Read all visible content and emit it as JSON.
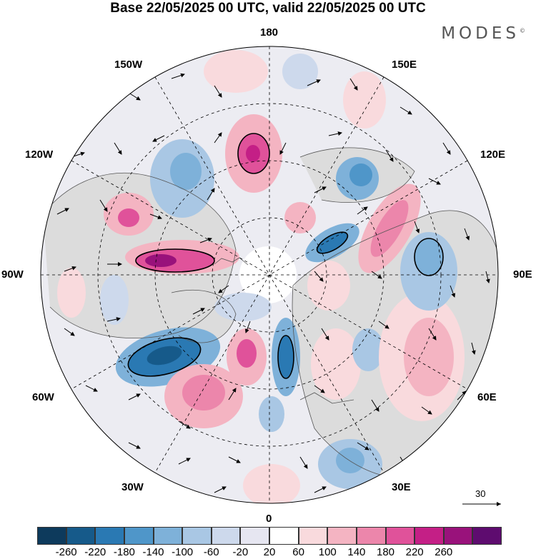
{
  "title": "Base 22/05/2025 00 UTC, valid 22/05/2025 00 UTC",
  "logo": {
    "text": "MODES",
    "mark": "©"
  },
  "longitude_labels": {
    "top": "180",
    "bottom": "0",
    "left": "90W",
    "right": "90E",
    "nw_upper": "150W",
    "nw_lower": "120W",
    "ne_upper": "150E",
    "ne_lower": "120E",
    "sw_upper": "60W",
    "sw_lower": "30W",
    "se_upper": "60E",
    "se_lower": "30E"
  },
  "reference_vector": {
    "label": "30"
  },
  "colorbar": {
    "colors": [
      "#0d3a5c",
      "#165a8a",
      "#2a79b3",
      "#4f96c9",
      "#7eb1d9",
      "#a9c7e4",
      "#cdd9ec",
      "#e6e6f1",
      "#ffffff",
      "#f9dadd",
      "#f4b4c2",
      "#ec86ab",
      "#e0529a",
      "#c41f86",
      "#99127b",
      "#5e0c6f"
    ],
    "labels": [
      "-260",
      "-220",
      "-180",
      "-140",
      "-100",
      "-60",
      "-20",
      "20",
      "60",
      "100",
      "140",
      "180",
      "220",
      "260"
    ]
  }
}
